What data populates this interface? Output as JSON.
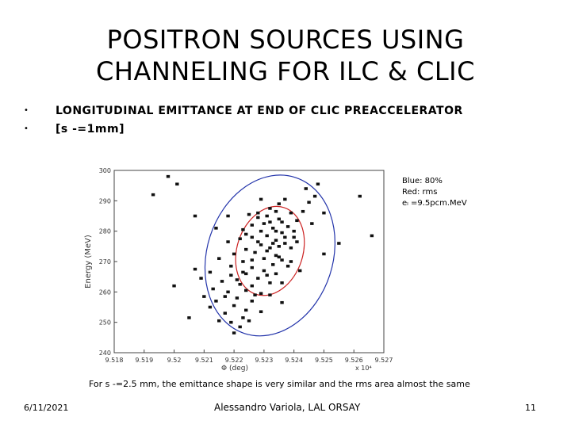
{
  "slide": {
    "title_line1": "POSITRON SOURCES USING",
    "title_line2": "CHANNELING FOR ILC & CLIC",
    "bullets": [
      "LONGITUDINAL EMITTANCE AT END OF CLIC PREACCELERATOR",
      "[s  -=1mm]"
    ],
    "caption": "For s -=2.5 mm, the emittance shape is very similar and the rms area almost  the same",
    "footer_date": "6/11/2021",
    "footer_author": "Alessandro Variola, LAL ORSAY",
    "page_number": "11"
  },
  "legend": {
    "line1": "Blue: 80%",
    "line2": "Red: rms",
    "line3": "eₗ =9.5pcm.MeV"
  },
  "colors": {
    "ellipse_80": "#2233aa",
    "ellipse_rms": "#cc2222",
    "points": "#111111"
  },
  "chart_data": {
    "type": "scatter",
    "xlabel": "Φ (deg)",
    "ylabel": "Energy (MeV)",
    "x_multiplier": "x 10⁴",
    "xlim": [
      9.518,
      9.527
    ],
    "ylim": [
      240,
      300
    ],
    "x_ticks": [
      "9.518",
      "9.519",
      "9.52",
      "9.521",
      "9.522",
      "9.523",
      "9.524",
      "9.525",
      "9.526",
      "9.527"
    ],
    "y_ticks": [
      "300",
      "290",
      "280",
      "270",
      "260",
      "250",
      "240"
    ],
    "points": [
      [
        9.5232,
        287.5
      ],
      [
        9.5234,
        286.5
      ],
      [
        9.5231,
        285.0
      ],
      [
        9.5235,
        284.0
      ],
      [
        9.5228,
        284.5
      ],
      [
        9.5236,
        283.0
      ],
      [
        9.5238,
        281.5
      ],
      [
        9.5226,
        282.0
      ],
      [
        9.5233,
        281.0
      ],
      [
        9.5229,
        280.0
      ],
      [
        9.5236,
        279.5
      ],
      [
        9.5223,
        280.5
      ],
      [
        9.524,
        280.0
      ],
      [
        9.5231,
        278.5
      ],
      [
        9.5226,
        278.0
      ],
      [
        9.5234,
        277.0
      ],
      [
        9.5222,
        277.5
      ],
      [
        9.5237,
        276.0
      ],
      [
        9.5229,
        275.5
      ],
      [
        9.5218,
        276.5
      ],
      [
        9.5232,
        274.5
      ],
      [
        9.5224,
        274.0
      ],
      [
        9.5239,
        274.5
      ],
      [
        9.5227,
        273.0
      ],
      [
        9.5234,
        272.0
      ],
      [
        9.522,
        272.5
      ],
      [
        9.523,
        271.0
      ],
      [
        9.5236,
        270.5
      ],
      [
        9.5223,
        270.0
      ],
      [
        9.5233,
        269.0
      ],
      [
        9.5226,
        268.0
      ],
      [
        9.5238,
        268.5
      ],
      [
        9.5219,
        268.5
      ],
      [
        9.523,
        267.0
      ],
      [
        9.5224,
        266.0
      ],
      [
        9.5234,
        266.0
      ],
      [
        9.5228,
        264.5
      ],
      [
        9.5221,
        264.0
      ],
      [
        9.5232,
        263.0
      ],
      [
        9.5216,
        263.5
      ],
      [
        9.5226,
        262.0
      ],
      [
        9.5236,
        263.0
      ],
      [
        9.5224,
        260.5
      ],
      [
        9.5218,
        260.0
      ],
      [
        9.5229,
        259.5
      ],
      [
        9.5221,
        258.0
      ],
      [
        9.5214,
        257.0
      ],
      [
        9.5226,
        257.0
      ],
      [
        9.522,
        255.5
      ],
      [
        9.5224,
        254.0
      ],
      [
        9.5217,
        253.0
      ],
      [
        9.5223,
        251.5
      ],
      [
        9.5219,
        250.0
      ],
      [
        9.5222,
        248.5
      ],
      [
        9.5225,
        250.5
      ],
      [
        9.5215,
        250.5
      ],
      [
        9.522,
        246.5
      ],
      [
        9.5212,
        255.0
      ],
      [
        9.521,
        258.5
      ],
      [
        9.5209,
        264.5
      ],
      [
        9.5207,
        267.5
      ],
      [
        9.5215,
        271.0
      ],
      [
        9.5212,
        266.5
      ],
      [
        9.5241,
        283.5
      ],
      [
        9.5243,
        286.5
      ],
      [
        9.5245,
        289.5
      ],
      [
        9.5247,
        291.5
      ],
      [
        9.5244,
        294.0
      ],
      [
        9.5248,
        295.5
      ],
      [
        9.525,
        286.0
      ],
      [
        9.5237,
        290.5
      ],
      [
        9.5235,
        289.0
      ],
      [
        9.5229,
        290.5
      ],
      [
        9.5246,
        282.5
      ],
      [
        9.5241,
        276.5
      ],
      [
        9.5201,
        295.5
      ],
      [
        9.5198,
        298.0
      ],
      [
        9.5193,
        292.0
      ],
      [
        9.5262,
        291.5
      ],
      [
        9.5266,
        278.5
      ],
      [
        9.5207,
        285.0
      ],
      [
        9.5214,
        281.0
      ],
      [
        9.5218,
        285.0
      ],
      [
        9.5239,
        270.0
      ],
      [
        9.5242,
        267.0
      ],
      [
        9.5232,
        259.0
      ],
      [
        9.5236,
        256.5
      ],
      [
        9.5229,
        253.5
      ],
      [
        9.5205,
        251.5
      ],
      [
        9.52,
        262.0
      ],
      [
        9.5255,
        276.0
      ],
      [
        9.525,
        272.5
      ],
      [
        9.5228,
        286.0
      ],
      [
        9.5232,
        283.0
      ],
      [
        9.5234,
        280.0
      ],
      [
        9.5228,
        276.5
      ],
      [
        9.5231,
        273.5
      ],
      [
        9.5235,
        275.0
      ],
      [
        9.5226,
        270.5
      ],
      [
        9.5231,
        265.5
      ],
      [
        9.5222,
        262.5
      ],
      [
        9.5227,
        259.0
      ],
      [
        9.5217,
        258.5
      ],
      [
        9.5213,
        261.0
      ],
      [
        9.5225,
        285.5
      ],
      [
        9.5239,
        286.0
      ],
      [
        9.5237,
        278.0
      ],
      [
        9.5223,
        266.5
      ],
      [
        9.5235,
        271.5
      ],
      [
        9.5219,
        265.5
      ],
      [
        9.5233,
        276.0
      ],
      [
        9.523,
        282.5
      ],
      [
        9.5224,
        279.0
      ],
      [
        9.524,
        278.0
      ]
    ],
    "ellipses": [
      {
        "label": "80%",
        "color": "#2233aa",
        "cx": 9.5232,
        "cy": 272.0,
        "rx": 0.0021,
        "ry": 27.0,
        "tilt": 1
      },
      {
        "label": "rms",
        "color": "#cc2222",
        "cx": 9.5232,
        "cy": 273.5,
        "rx": 0.0011,
        "ry": 15.0,
        "tilt": 1
      }
    ]
  }
}
